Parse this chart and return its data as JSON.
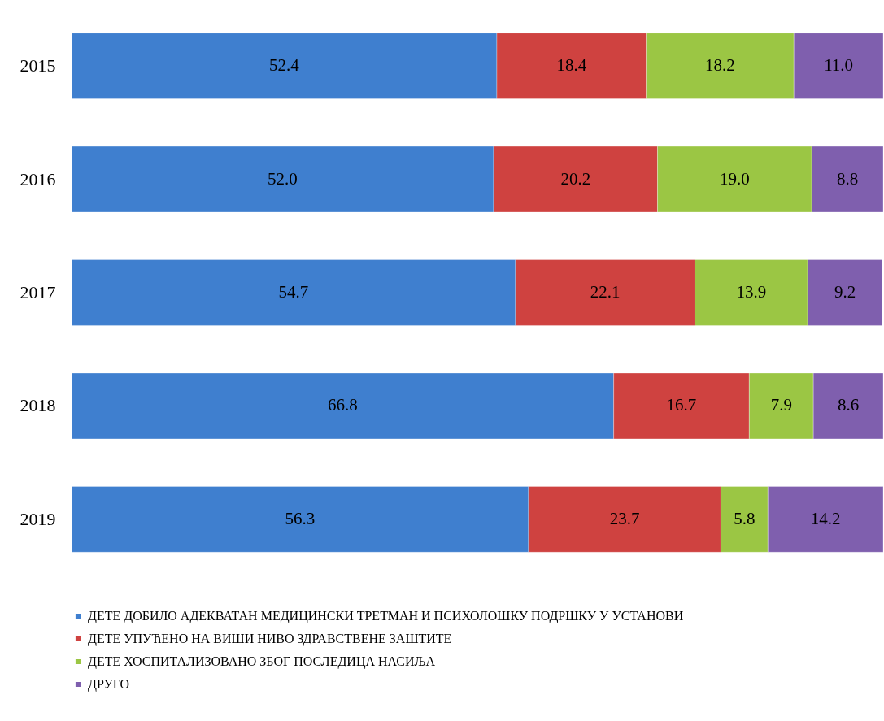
{
  "chart_data": {
    "type": "bar",
    "orientation": "horizontal",
    "stacked": true,
    "legend": "bottom left",
    "grid": false,
    "categories": [
      "2015",
      "2016",
      "2017",
      "2018",
      "2019"
    ],
    "series": [
      {
        "name": "ДЕТЕ ДОБИЛО АДЕКВАТАН МЕДИЦИНСКИ ТРЕТМАН И ПСИХОЛОШКУ ПОДРШКУ У УСТАНОВИ",
        "color": "#3f7fcf",
        "values": [
          52.4,
          52.0,
          54.7,
          66.8,
          56.3
        ],
        "value_labels": [
          "52.4",
          "52.0",
          "54.7",
          "66.8",
          "56.3"
        ]
      },
      {
        "name": "ДЕТЕ УПУЋЕНО НА ВИШИ НИВО ЗДРАВСТВЕНЕ ЗАШТИТЕ",
        "color": "#cf4240",
        "values": [
          18.4,
          20.2,
          22.1,
          16.7,
          23.7
        ],
        "value_labels": [
          "18.4",
          "20.2",
          "22.1",
          "16.7",
          "23.7"
        ]
      },
      {
        "name": "ДЕТЕ ХОСПИТАЛИЗОВАНО ЗБОГ ПОСЛЕДИЦА НАСИЉА",
        "color": "#9bc644",
        "values": [
          18.2,
          19.0,
          13.9,
          7.9,
          5.8
        ],
        "value_labels": [
          "18.2",
          "19.0",
          "13.9",
          "7.9",
          "5.8"
        ]
      },
      {
        "name": "ДРУГО",
        "color": "#7f5fae",
        "values": [
          11.0,
          8.8,
          9.2,
          8.6,
          14.2
        ],
        "value_labels": [
          "11.0",
          "8.8",
          "9.2",
          "8.6",
          "14.2"
        ]
      }
    ]
  }
}
